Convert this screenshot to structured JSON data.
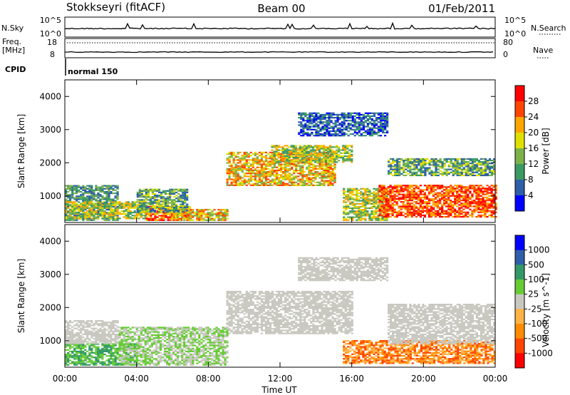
{
  "header": {
    "station": "Stokkseyri (fitACF)",
    "beam": "Beam 00",
    "date": "01/Feb/2011"
  },
  "panels": {
    "nsky_label": "N.Sky",
    "nsearch_label": "N.Search",
    "nsky_ticks": [
      "10^5",
      "10^0"
    ],
    "nsearch_ticks": [
      "10^5",
      "10^0"
    ],
    "freq_label_1": "Freq.",
    "freq_label_2": "[MHz]",
    "freq_ticks": [
      "18",
      "8"
    ],
    "nave_label": "Nave",
    "nave_ticks": [
      "80",
      "0"
    ],
    "cpid_label": "CPID",
    "cpid_value": "normal 150"
  },
  "chart_data": [
    {
      "type": "heatmap",
      "name": "power",
      "ylabel": "Slant Range [km]",
      "y_ticks": [
        "4000",
        "3000",
        "2000",
        "1000"
      ],
      "y_tick_values": [
        4000,
        3000,
        2000,
        1000
      ],
      "ylim": [
        200,
        4500
      ],
      "xlim": [
        0,
        24
      ],
      "colorbar_label": "Power [dB]",
      "colorbar_ticks": [
        "28",
        "24",
        "20",
        "16",
        "12",
        "8",
        "4"
      ],
      "colors": [
        "#0000ff",
        "#2e5fa8",
        "#3a9a63",
        "#7cb24a",
        "#e0e000",
        "#ffa500",
        "#ff4500",
        "#ff0000"
      ],
      "blobs": [
        {
          "t0": 0.0,
          "t1": 3.0,
          "r0": 250,
          "r1": 1300,
          "c": [
            1,
            3
          ]
        },
        {
          "t0": 0.0,
          "t1": 4.5,
          "r0": 300,
          "r1": 800,
          "c": [
            2,
            5
          ]
        },
        {
          "t0": 4.5,
          "t1": 7.0,
          "r0": 250,
          "r1": 700,
          "c": [
            4,
            7
          ]
        },
        {
          "t0": 6.0,
          "t1": 9.0,
          "r0": 250,
          "r1": 600,
          "c": [
            3,
            6
          ]
        },
        {
          "t0": 4.0,
          "t1": 6.8,
          "r0": 500,
          "r1": 1200,
          "c": [
            1,
            4
          ]
        },
        {
          "t0": 9.0,
          "t1": 15.0,
          "r0": 1300,
          "r1": 2300,
          "c": [
            3,
            6
          ]
        },
        {
          "t0": 11.5,
          "t1": 16.0,
          "r0": 2000,
          "r1": 2500,
          "c": [
            2,
            5
          ]
        },
        {
          "t0": 15.5,
          "t1": 18.0,
          "r0": 250,
          "r1": 1200,
          "c": [
            2,
            5
          ]
        },
        {
          "t0": 17.5,
          "t1": 24.0,
          "r0": 350,
          "r1": 1300,
          "c": [
            5,
            7
          ]
        },
        {
          "t0": 18.0,
          "t1": 24.0,
          "r0": 1600,
          "r1": 2100,
          "c": [
            1,
            4
          ]
        },
        {
          "t0": 13.0,
          "t1": 18.0,
          "r0": 2800,
          "r1": 3500,
          "c": [
            0,
            2
          ]
        }
      ]
    },
    {
      "type": "heatmap",
      "name": "velocity",
      "ylabel": "Slant Range [km]",
      "y_ticks": [
        "4000",
        "3000",
        "2000",
        "1000"
      ],
      "y_tick_values": [
        4000,
        3000,
        2000,
        1000
      ],
      "ylim": [
        200,
        4500
      ],
      "xlim": [
        0,
        24
      ],
      "x_ticks": [
        "00:00",
        "04:00",
        "08:00",
        "12:00",
        "16:00",
        "20:00",
        "00:00"
      ],
      "x_tick_values": [
        0,
        4,
        8,
        12,
        16,
        20,
        24
      ],
      "xlabel": "Time UT",
      "colorbar_label": "Velocity [m s^-1]",
      "colorbar_ticks": [
        "1000",
        "500",
        "100",
        "25",
        "-25",
        "-100",
        "-500",
        "-1000"
      ],
      "colors": [
        "#ff0000",
        "#ff4500",
        "#ff8c00",
        "#ffb347",
        "#c8c8c0",
        "#66cc33",
        "#339966",
        "#2e5fa8",
        "#0000ff"
      ],
      "blobs": [
        {
          "t0": 0.0,
          "t1": 4.0,
          "r0": 250,
          "r1": 900,
          "c": [
            5,
            6
          ]
        },
        {
          "t0": 0.0,
          "t1": 3.0,
          "r0": 900,
          "r1": 1600,
          "c": [
            4,
            4
          ]
        },
        {
          "t0": 3.0,
          "t1": 9.0,
          "r0": 250,
          "r1": 1400,
          "c": [
            4,
            5
          ]
        },
        {
          "t0": 9.0,
          "t1": 16.0,
          "r0": 1200,
          "r1": 2500,
          "c": [
            4,
            4
          ]
        },
        {
          "t0": 15.5,
          "t1": 24.0,
          "r0": 300,
          "r1": 1000,
          "c": [
            1,
            3
          ]
        },
        {
          "t0": 18.0,
          "t1": 24.0,
          "r0": 900,
          "r1": 2100,
          "c": [
            4,
            4
          ]
        },
        {
          "t0": 13.0,
          "t1": 18.0,
          "r0": 2800,
          "r1": 3500,
          "c": [
            4,
            4
          ]
        }
      ]
    }
  ]
}
